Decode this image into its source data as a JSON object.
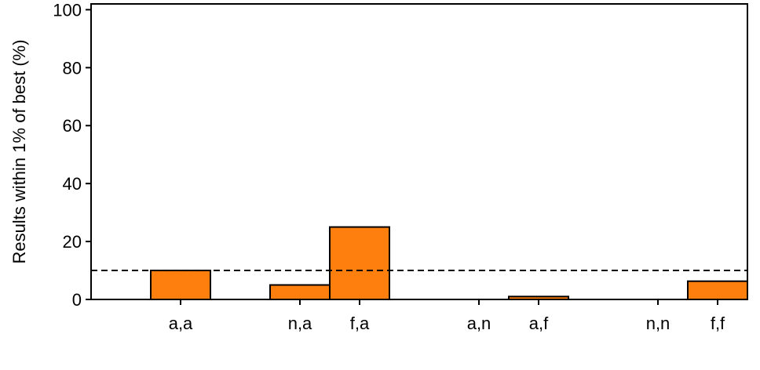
{
  "chart_data": {
    "type": "bar",
    "xlabel": "",
    "ylabel": "Results within 1% of best (%)",
    "ylim": [
      0,
      102
    ],
    "yticks": [
      0,
      20,
      40,
      60,
      80,
      100
    ],
    "ytick_labels": [
      "0",
      "20",
      "40",
      "60",
      "80",
      "100"
    ],
    "xlim": [
      -0.5,
      10.5
    ],
    "categories": [
      "a,a",
      "n,a",
      "f,a",
      "a,n",
      "a,f",
      "n,n",
      "f,f"
    ],
    "x": [
      1,
      3,
      4,
      6,
      7,
      9,
      10
    ],
    "values": [
      10,
      5,
      25,
      0,
      1,
      0,
      6.3
    ],
    "bar_width": 1,
    "reference_line": {
      "y": 10,
      "style": "dashed",
      "color": "#000000"
    },
    "bar_color": "#ff7f0e",
    "edge_color": "#000000",
    "grid": false,
    "legend": "none"
  }
}
